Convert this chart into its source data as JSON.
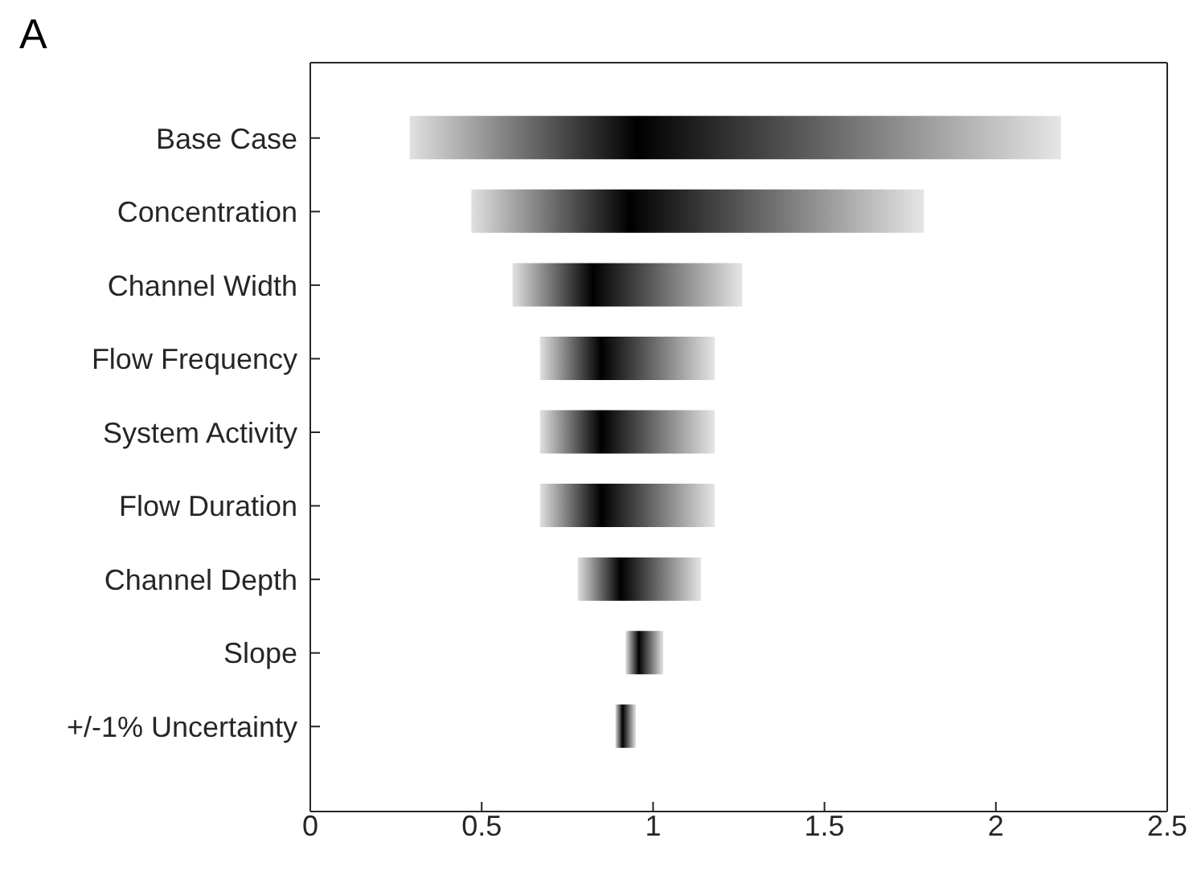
{
  "chart_data": {
    "type": "bar",
    "orientation": "horizontal",
    "title": "A",
    "categories": [
      "Base Case",
      "Concentration",
      "Channel Width",
      "Flow Frequency",
      "System Activity",
      "Flow Duration",
      "Channel Depth",
      "Slope",
      "+/-1% Uncertainty"
    ],
    "base": [
      0.29,
      0.47,
      0.59,
      0.67,
      0.67,
      0.67,
      0.78,
      0.92,
      0.89
    ],
    "values": [
      1.9,
      1.32,
      0.67,
      0.51,
      0.51,
      0.51,
      0.36,
      0.11,
      0.06
    ],
    "color": "#000000",
    "xlim": [
      0,
      2.5
    ],
    "xticks": [
      0,
      0.5,
      1,
      1.5,
      2,
      2.5
    ]
  }
}
